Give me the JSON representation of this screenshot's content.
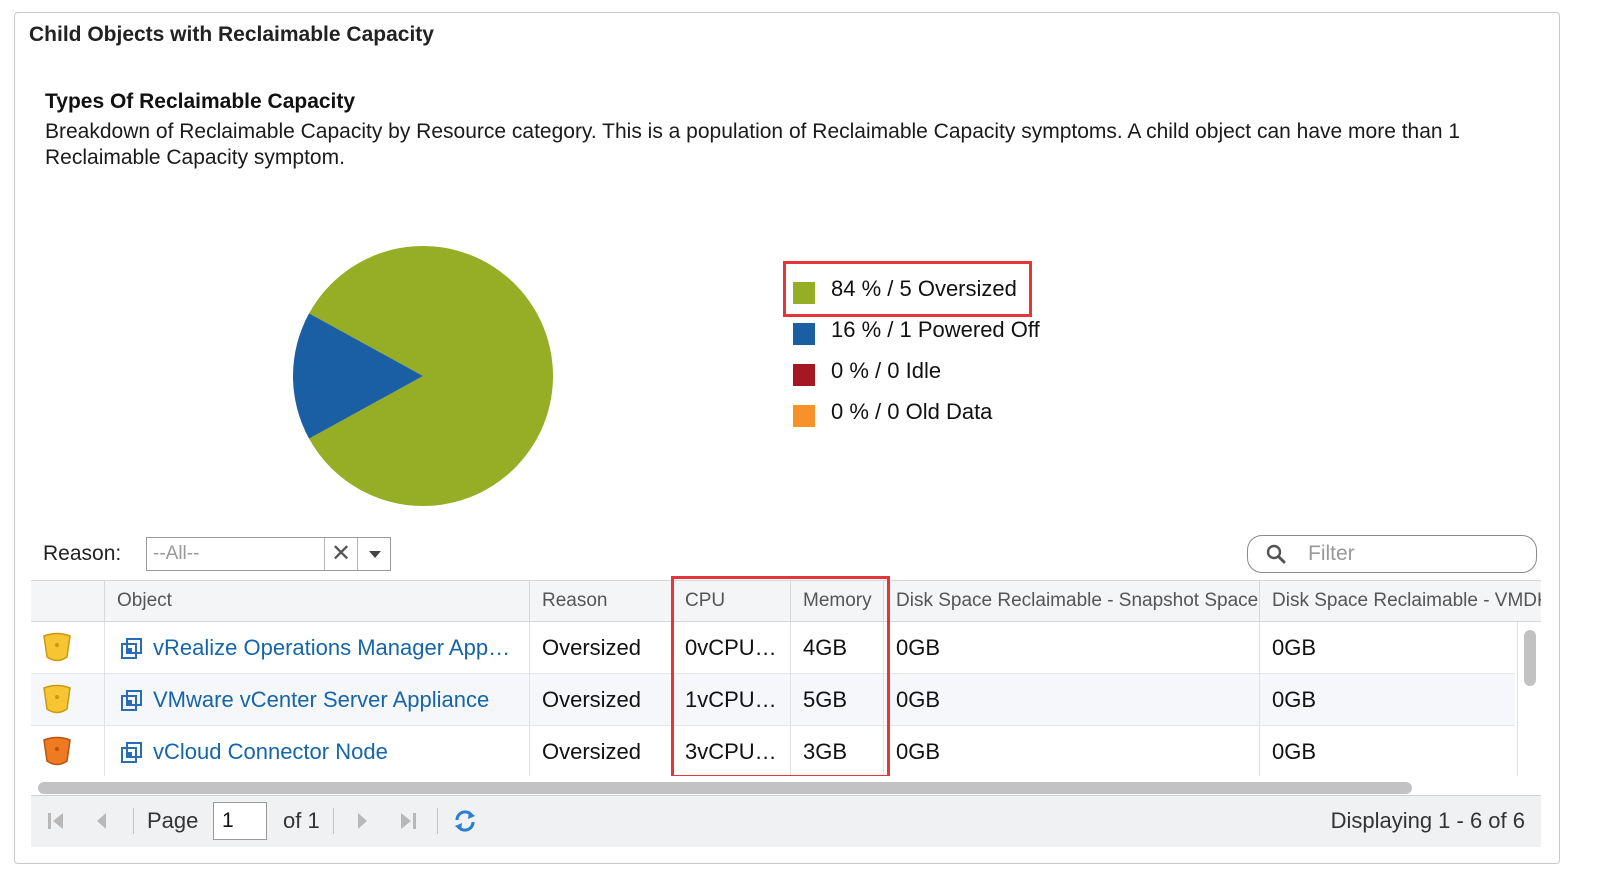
{
  "panel": {
    "title": "Child Objects with Reclaimable Capacity"
  },
  "section": {
    "title": "Types Of Reclaimable Capacity",
    "description": "Breakdown of Reclaimable Capacity by Resource category. This is a population of Reclaimable Capacity symptoms. A child object can have more than 1 Reclaimable Capacity symptom."
  },
  "chart_data": {
    "type": "pie",
    "categories": [
      "Oversized",
      "Powered Off",
      "Idle",
      "Old Data"
    ],
    "values": [
      84,
      16,
      0,
      0
    ],
    "counts": [
      5,
      1,
      0,
      0
    ],
    "colors": [
      "#96ad26",
      "#1a5ea3",
      "#a51722",
      "#f7922a"
    ],
    "legend_labels": [
      "84 % / 5 Oversized",
      "16 % / 1 Powered Off",
      "0 % / 0 Idle",
      "0 % / 0 Old Data"
    ],
    "legend_position": "right"
  },
  "filter_bar": {
    "reason_label": "Reason:",
    "reason_placeholder": "--All--",
    "clear_symbol": "✕",
    "search_placeholder": "Filter"
  },
  "table": {
    "columns": [
      "",
      "Object",
      "Reason",
      "CPU",
      "Memory",
      "Disk Space Reclaimable - Snapshot Space",
      "Disk Space Reclaimable - VMDK"
    ],
    "rows": [
      {
        "status": "yellow",
        "object": "vRealize Operations Manager App…",
        "reason": "Oversized",
        "cpu": "0vCPU…",
        "memory": "4GB",
        "snapshot": "0GB",
        "vmdk": "0GB"
      },
      {
        "status": "yellow",
        "object": "VMware vCenter Server Appliance",
        "reason": "Oversized",
        "cpu": "1vCPU…",
        "memory": "5GB",
        "snapshot": "0GB",
        "vmdk": "0GB"
      },
      {
        "status": "orange",
        "object": "vCloud Connector Node",
        "reason": "Oversized",
        "cpu": "3vCPU…",
        "memory": "3GB",
        "snapshot": "0GB",
        "vmdk": "0GB"
      }
    ],
    "status_colors": {
      "yellow": "#f6c531",
      "orange": "#ef7a22"
    }
  },
  "pager": {
    "page_label": "Page",
    "page_value": "1",
    "of_label": "of 1",
    "status": "Displaying 1 - 6 of 6"
  }
}
